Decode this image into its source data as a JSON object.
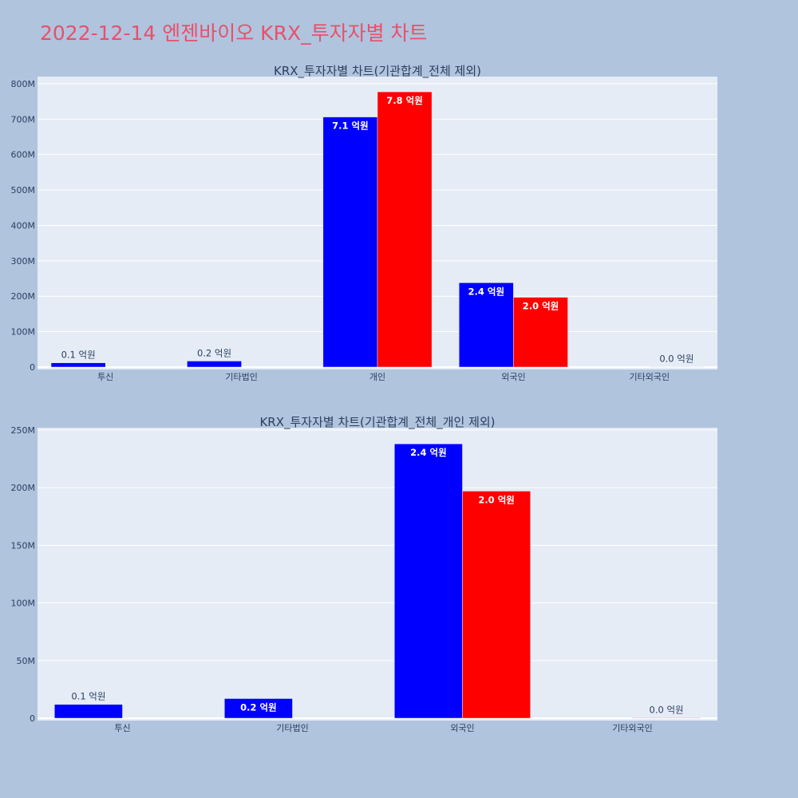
{
  "page": {
    "title": "2022-12-14 엔젠바이오 KRX_투자자별 차트"
  },
  "colors": {
    "background": "#b0c4de",
    "plot_bg": "#e5ecf6",
    "grid": "#ffffff",
    "title": "#e8506b",
    "text": "#2a3f5f",
    "series_1": "#0000ff",
    "series_2": "#ff0000"
  },
  "chart_data": [
    {
      "type": "bar",
      "title": "KRX_투자자별 차트(기관합계_전체 제외)",
      "categories": [
        "투신",
        "기타법인",
        "개인",
        "외국인",
        "기타외국인"
      ],
      "ylim": [
        0,
        820000000
      ],
      "yticks": [
        0,
        100000000,
        200000000,
        300000000,
        400000000,
        500000000,
        600000000,
        700000000,
        800000000
      ],
      "ytick_labels": [
        "0",
        "100M",
        "200M",
        "300M",
        "400M",
        "500M",
        "600M",
        "700M",
        "800M"
      ],
      "grid": true,
      "legend": "none",
      "series": [
        {
          "color": "#0000ff",
          "values": [
            12000000,
            17000000,
            706000000,
            238000000,
            0
          ],
          "labels": [
            "0.1 억원",
            "0.2 억원",
            "7.1 억원",
            "2.4 억원",
            ""
          ]
        },
        {
          "color": "#ff0000",
          "values": [
            0,
            0,
            777000000,
            197000000,
            1000000
          ],
          "labels": [
            "",
            "",
            "7.8 억원",
            "2.0 억원",
            "0.0 억원"
          ]
        }
      ]
    },
    {
      "type": "bar",
      "title": "KRX_투자자별 차트(기관합계_전체_개인 제외)",
      "categories": [
        "투신",
        "기타법인",
        "외국인",
        "기타외국인"
      ],
      "ylim": [
        0,
        252000000
      ],
      "yticks": [
        0,
        50000000,
        100000000,
        150000000,
        200000000,
        250000000
      ],
      "ytick_labels": [
        "0",
        "50M",
        "100M",
        "150M",
        "200M",
        "250M"
      ],
      "grid": true,
      "legend": "none",
      "series": [
        {
          "color": "#0000ff",
          "values": [
            12000000,
            17000000,
            238000000,
            0
          ],
          "labels": [
            "0.1 억원",
            "0.2 억원",
            "2.4 억원",
            ""
          ]
        },
        {
          "color": "#ff0000",
          "values": [
            0,
            0,
            197000000,
            400000
          ],
          "labels": [
            "",
            "",
            "2.0 억원",
            "0.0 억원"
          ]
        }
      ]
    }
  ]
}
